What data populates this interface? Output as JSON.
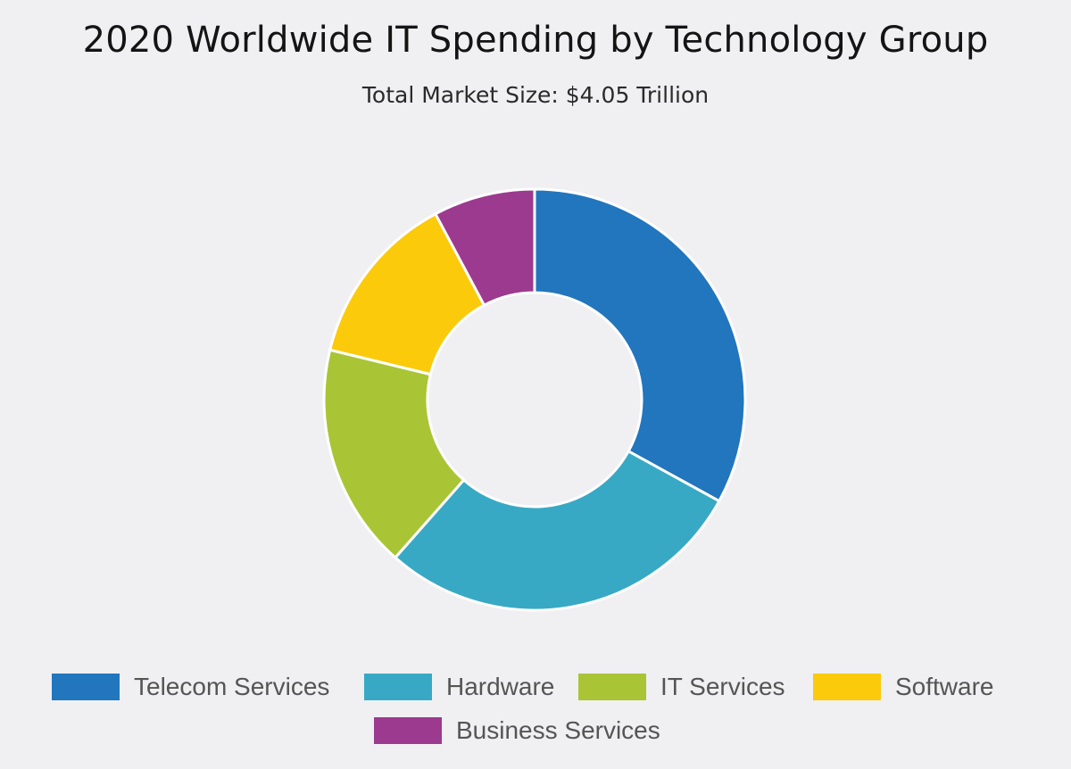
{
  "chart_data": {
    "type": "pie",
    "subtype": "donut",
    "title": "2020 Worldwide IT Spending by Technology Group",
    "subtitle": "Total Market Size: $4.05 Trillion",
    "legend_position": "bottom",
    "slices": [
      {
        "label": "Telecom Services",
        "value": 33.0,
        "color": "#2176bd"
      },
      {
        "label": "Hardware",
        "value": 28.5,
        "color": "#38a9c4"
      },
      {
        "label": "IT Services",
        "value": 17.3,
        "color": "#a9c535"
      },
      {
        "label": "Software",
        "value": 13.4,
        "color": "#fbca0b"
      },
      {
        "label": "Business Services",
        "value": 7.8,
        "color": "#9b3a8e"
      }
    ]
  }
}
